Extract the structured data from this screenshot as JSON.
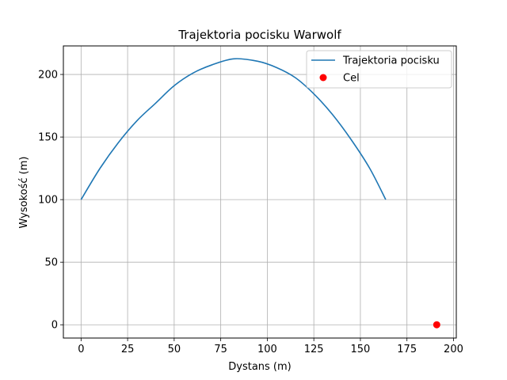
{
  "chart_data": {
    "type": "line",
    "title": "Trajektoria pocisku Warwolf",
    "xlabel": "Dystans (m)",
    "ylabel": "Wysokość (m)",
    "xlim": [
      -9.5,
      201.5
    ],
    "ylim": [
      -10.6,
      222.8
    ],
    "xticks": [
      0,
      25,
      50,
      75,
      100,
      125,
      150,
      175,
      200
    ],
    "yticks": [
      0,
      50,
      100,
      150,
      200
    ],
    "grid": true,
    "legend_position": "top-right",
    "series": [
      {
        "name": "Trajektoria pocisku",
        "kind": "line",
        "color": "#1f77b4",
        "x": [
          0,
          10,
          20,
          30,
          40,
          50,
          60,
          70,
          82,
          95,
          105,
          115,
          125,
          135,
          145,
          155,
          163.6
        ],
        "y": [
          100,
          124.6,
          145.5,
          163,
          177,
          191,
          201,
          207.5,
          212.5,
          210.5,
          205.5,
          197.5,
          184.5,
          168,
          148,
          125,
          100
        ]
      },
      {
        "name": "Cel",
        "kind": "scatter",
        "color": "#ff0000",
        "x": [
          191
        ],
        "y": [
          0
        ]
      }
    ]
  }
}
